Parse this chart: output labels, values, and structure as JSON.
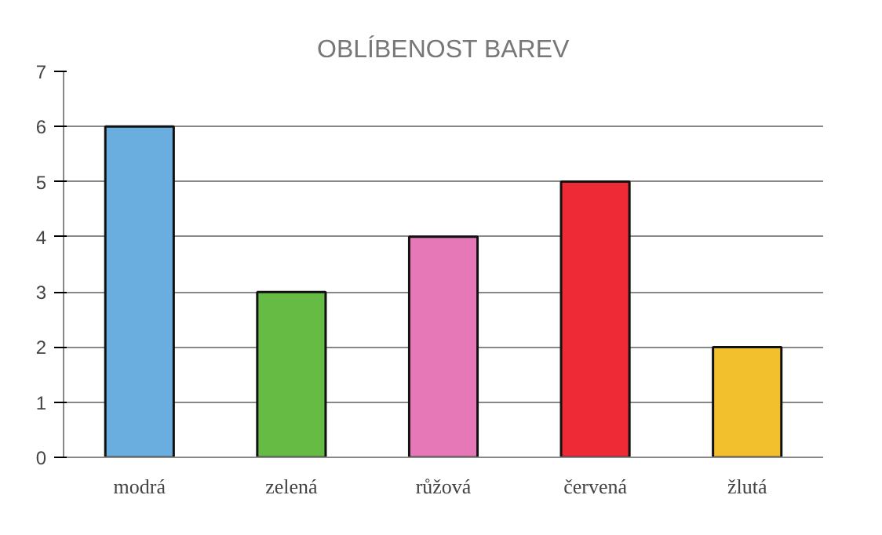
{
  "chart_data": {
    "type": "bar",
    "title": "OBLÍBENOST BAREV",
    "categories": [
      "modrá",
      "zelená",
      "růžová",
      "červená",
      "žlutá"
    ],
    "values": [
      6,
      3,
      4,
      5,
      2
    ],
    "colors": [
      "#6aaee0",
      "#66bb44",
      "#e778b8",
      "#ee2a36",
      "#f2c02c"
    ],
    "ylim": [
      0,
      7
    ],
    "yticks": [
      0,
      1,
      2,
      3,
      4,
      5,
      6,
      7
    ],
    "grid": "y"
  }
}
